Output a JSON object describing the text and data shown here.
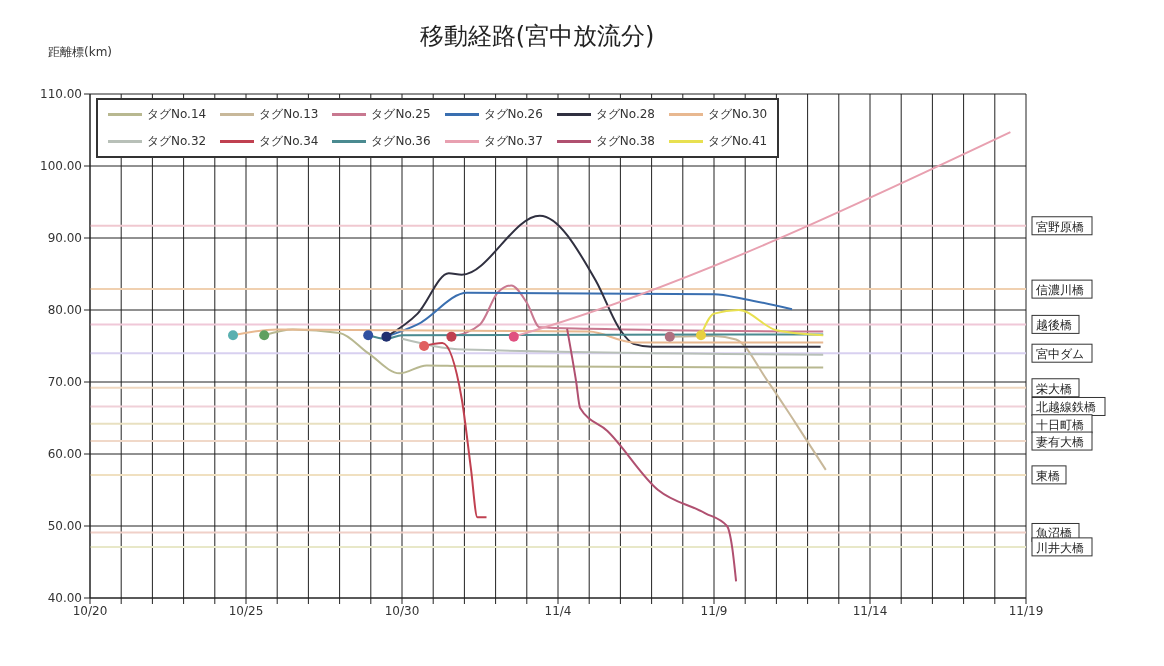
{
  "chart_data": {
    "type": "line",
    "title": "移動経路(宮中放流分)",
    "ylabel": "距離標(km)",
    "xlim": [
      "--10-20",
      "--11-19"
    ],
    "xticks": [
      {
        "value": "--10-20",
        "label": "10/20"
      },
      {
        "value": "--10-21",
        "label": null
      },
      {
        "value": "--10-22",
        "label": null
      },
      {
        "value": "--10-23",
        "label": null
      },
      {
        "value": "--10-24",
        "label": null
      },
      {
        "value": "--10-25",
        "label": "10/25"
      },
      {
        "value": "--10-26",
        "label": null
      },
      {
        "value": "--10-27",
        "label": null
      },
      {
        "value": "--10-28",
        "label": null
      },
      {
        "value": "--10-29",
        "label": null
      },
      {
        "value": "--10-30",
        "label": "10/30"
      },
      {
        "value": "--10-31",
        "label": null
      },
      {
        "value": "--11-01",
        "label": null
      },
      {
        "value": "--11-02",
        "label": null
      },
      {
        "value": "--11-03",
        "label": null
      },
      {
        "value": "--11-04",
        "label": "11/4"
      },
      {
        "value": "--11-05",
        "label": null
      },
      {
        "value": "--11-06",
        "label": null
      },
      {
        "value": "--11-07",
        "label": null
      },
      {
        "value": "--11-08",
        "label": null
      },
      {
        "value": "--11-09",
        "label": "11/9"
      },
      {
        "value": "--11-10",
        "label": null
      },
      {
        "value": "--11-11",
        "label": null
      },
      {
        "value": "--11-12",
        "label": null
      },
      {
        "value": "--11-13",
        "label": null
      },
      {
        "value": "--11-14",
        "label": "11/14"
      },
      {
        "value": "--11-15",
        "label": null
      },
      {
        "value": "--11-16",
        "label": null
      },
      {
        "value": "--11-17",
        "label": null
      },
      {
        "value": "--11-18",
        "label": null
      },
      {
        "value": "--11-19",
        "label": "11/19"
      }
    ],
    "ylim": [
      40,
      110
    ],
    "yticks": [
      {
        "value": 40,
        "label": "40.00"
      },
      {
        "value": 50,
        "label": "50.00"
      },
      {
        "value": 60,
        "label": "60.00"
      },
      {
        "value": 70,
        "label": "70.00"
      },
      {
        "value": 80,
        "label": "80.00"
      },
      {
        "value": 90,
        "label": "90.00"
      },
      {
        "value": 100,
        "label": "100.00"
      },
      {
        "value": 110,
        "label": "110.00"
      }
    ],
    "grid": true,
    "legend": "top left",
    "marker": "none",
    "line_style": "solid",
    "series": [
      {
        "name": "タグNo.14",
        "color": "#b8b890",
        "x": [
          "--10-25T14:00",
          "--10-26T12:00",
          "--10-28",
          "--10-28T22:00",
          "--10-29T22:00",
          "--10-30T19:00",
          "--11-01",
          "--11-12T12:00"
        ],
        "values": [
          76.5,
          77.3,
          76.8,
          74,
          71.2,
          72.3,
          72.2,
          72
        ]
      },
      {
        "name": "タグNo.13",
        "color": "#c8b89a",
        "x": [
          "--11-07T14:00",
          "--11-09",
          "--11-09T17:00",
          "--11-10T17:00",
          "--11-11T14:00",
          "--11-12T14:00"
        ],
        "values": [
          76.3,
          76.4,
          75.9,
          70.2,
          64.5,
          57.8
        ]
      },
      {
        "name": "タグNo.25",
        "color": "#c87890",
        "x": [
          "--10-31T14:00",
          "--11-01T12:00",
          "--11-02T02:00",
          "--11-02T12:00",
          "--11-03",
          "--11-03T10:00",
          "--11-05",
          "--11-12T12:00"
        ],
        "values": [
          76.3,
          78,
          82.5,
          83.4,
          81,
          77.6,
          77.4,
          77
        ]
      },
      {
        "name": "タグNo.26",
        "color": "#3a6fb0",
        "x": [
          "--10-29T12:00",
          "--10-30T12:00",
          "--11-01T02:00",
          "--11-09",
          "--11-10",
          "--11-11T12:00"
        ],
        "values": [
          76.3,
          78,
          82.4,
          82.2,
          81.5,
          80.1
        ]
      },
      {
        "name": "タグNo.28",
        "color": "#303040",
        "x": [
          "--10-29T12:00",
          "--10-30T12:00",
          "--10-31T12:00",
          "--10-31T22:00",
          "--11-03T10:00",
          "--11-05T05:00",
          "--11-06",
          "--11-06T10:00",
          "--11-07",
          "--11-12T10:00"
        ],
        "values": [
          76.3,
          79.5,
          85.1,
          84.9,
          93.1,
          84.1,
          77.2,
          75.3,
          74.9,
          74.9
        ]
      },
      {
        "name": "タグNo.30",
        "color": "#e8b890",
        "x": [
          "--10-24T14:00",
          "--10-26",
          "--11-05",
          "--11-06T10:00",
          "--11-12T12:00"
        ],
        "values": [
          76.5,
          77.3,
          77,
          75.5,
          75.5
        ]
      },
      {
        "name": "タグNo.32",
        "color": "#b8c0b8",
        "x": [
          "--10-30",
          "--11-01",
          "--11-12T12:00"
        ],
        "values": [
          76,
          74.5,
          73.8
        ]
      },
      {
        "name": "タグNo.34",
        "color": "#c04050",
        "x": [
          "--10-30T17:00",
          "--10-31T07:00",
          "--10-31T22:00",
          "--11-01T05:00",
          "--11-01T10:00",
          "--11-01T17:00"
        ],
        "values": [
          75,
          75.4,
          67.6,
          58,
          51.2,
          51.2
        ]
      },
      {
        "name": "タグNo.36",
        "color": "#4a8a90",
        "x": [
          "--10-28T22:00",
          "--10-29T12:00",
          "--10-30",
          "--11-09",
          "--11-12T12:00"
        ],
        "values": [
          76.5,
          76,
          76.5,
          76.6,
          76.6
        ]
      },
      {
        "name": "タグNo.37",
        "color": "#e8a0b0",
        "x": [
          "--11-02T14:00",
          "--11-03T12:00",
          "--11-18T12:00"
        ],
        "values": [
          76.3,
          77.5,
          104.7
        ]
      },
      {
        "name": "タグNo.38",
        "color": "#b05070",
        "x": [
          "--11-04T07:00",
          "--11-04T14:00",
          "--11-04T17:00",
          "--11-05T14:00",
          "--11-07T05:00",
          "--11-08T17:00",
          "--11-09T10:00",
          "--11-09T14:00",
          "--11-09T17:00"
        ],
        "values": [
          77.4,
          70,
          66.4,
          63.2,
          55,
          51.8,
          50,
          47,
          42.3
        ]
      },
      {
        "name": "タグNo.41",
        "color": "#e8e050",
        "x": [
          "--11-08T14:00",
          "--11-09",
          "--11-09T19:00",
          "--11-11",
          "--11-12T12:00"
        ],
        "values": [
          76.5,
          79.5,
          80,
          77.2,
          76.5
        ]
      },
      {
        "type": "scatter",
        "marker": "circle",
        "x": [
          "--10-24T14:00",
          "--10-25T14:00",
          "--10-28T22:00",
          "--10-29T12:00",
          "--10-30T17:00",
          "--10-31T14:00",
          "--11-02T14:00",
          "--11-07T14:00",
          "--11-08T14:00"
        ],
        "values": [
          76.5,
          76.5,
          76.5,
          76.3,
          75,
          76.3,
          76.3,
          76.3,
          76.5
        ],
        "colors": [
          "#5ab0b0",
          "#60a060",
          "#3050a0",
          "#203070",
          "#e06060",
          "#c04050",
          "#e05080",
          "#b07080",
          "#e8d040"
        ]
      }
    ],
    "ref_lines": [
      {
        "axis": "y",
        "value": 91.7,
        "label": "宮野原橋",
        "color": "#f0c8d0"
      },
      {
        "axis": "y",
        "value": 82.9,
        "label": "信濃川橋",
        "color": "#f0d0b0"
      },
      {
        "axis": "y",
        "value": 78,
        "label": "越後橋",
        "color": "#f0c8d8"
      },
      {
        "axis": "y",
        "value": 74,
        "label": "宮中ダム",
        "color": "#d8d0f0"
      },
      {
        "axis": "y",
        "value": 69.2,
        "label": "栄大橋",
        "color": "#f0d8c0"
      },
      {
        "axis": "y",
        "value": 66.6,
        "label": "北越線鉄橋",
        "color": "#f0d0d8"
      },
      {
        "axis": "y",
        "value": 64.2,
        "label": "十日町橋",
        "color": "#e8e0c0"
      },
      {
        "axis": "y",
        "value": 61.8,
        "label": "妻有大橋",
        "color": "#f0d8c8"
      },
      {
        "axis": "y",
        "value": 57.1,
        "label": "東橋",
        "color": "#f0e0c0"
      },
      {
        "axis": "y",
        "value": 49.1,
        "label": "魚沼橋",
        "color": "#f0d0c8"
      },
      {
        "axis": "y",
        "value": 47.1,
        "label": "川井大橋",
        "color": "#e8e8c8"
      }
    ]
  }
}
